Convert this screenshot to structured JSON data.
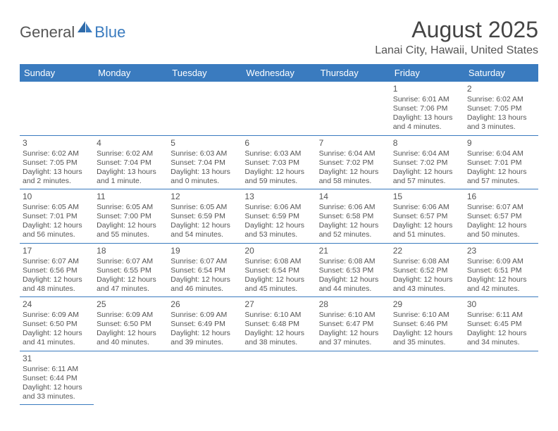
{
  "logo": {
    "general": "General",
    "blue": "Blue"
  },
  "title": "August 2025",
  "location": "Lanai City, Hawaii, United States",
  "colors": {
    "header_bg": "#3a7bbf",
    "header_fg": "#ffffff",
    "border": "#3a7bbf",
    "text": "#555555",
    "logo_gray": "#555555",
    "logo_blue": "#3a7bbf"
  },
  "weekdays": [
    "Sunday",
    "Monday",
    "Tuesday",
    "Wednesday",
    "Thursday",
    "Friday",
    "Saturday"
  ],
  "first_weekday_index": 5,
  "days": [
    {
      "n": 1,
      "sunrise": "6:01 AM",
      "sunset": "7:06 PM",
      "daylight": "13 hours and 4 minutes."
    },
    {
      "n": 2,
      "sunrise": "6:02 AM",
      "sunset": "7:05 PM",
      "daylight": "13 hours and 3 minutes."
    },
    {
      "n": 3,
      "sunrise": "6:02 AM",
      "sunset": "7:05 PM",
      "daylight": "13 hours and 2 minutes."
    },
    {
      "n": 4,
      "sunrise": "6:02 AM",
      "sunset": "7:04 PM",
      "daylight": "13 hours and 1 minute."
    },
    {
      "n": 5,
      "sunrise": "6:03 AM",
      "sunset": "7:04 PM",
      "daylight": "13 hours and 0 minutes."
    },
    {
      "n": 6,
      "sunrise": "6:03 AM",
      "sunset": "7:03 PM",
      "daylight": "12 hours and 59 minutes."
    },
    {
      "n": 7,
      "sunrise": "6:04 AM",
      "sunset": "7:02 PM",
      "daylight": "12 hours and 58 minutes."
    },
    {
      "n": 8,
      "sunrise": "6:04 AM",
      "sunset": "7:02 PM",
      "daylight": "12 hours and 57 minutes."
    },
    {
      "n": 9,
      "sunrise": "6:04 AM",
      "sunset": "7:01 PM",
      "daylight": "12 hours and 57 minutes."
    },
    {
      "n": 10,
      "sunrise": "6:05 AM",
      "sunset": "7:01 PM",
      "daylight": "12 hours and 56 minutes."
    },
    {
      "n": 11,
      "sunrise": "6:05 AM",
      "sunset": "7:00 PM",
      "daylight": "12 hours and 55 minutes."
    },
    {
      "n": 12,
      "sunrise": "6:05 AM",
      "sunset": "6:59 PM",
      "daylight": "12 hours and 54 minutes."
    },
    {
      "n": 13,
      "sunrise": "6:06 AM",
      "sunset": "6:59 PM",
      "daylight": "12 hours and 53 minutes."
    },
    {
      "n": 14,
      "sunrise": "6:06 AM",
      "sunset": "6:58 PM",
      "daylight": "12 hours and 52 minutes."
    },
    {
      "n": 15,
      "sunrise": "6:06 AM",
      "sunset": "6:57 PM",
      "daylight": "12 hours and 51 minutes."
    },
    {
      "n": 16,
      "sunrise": "6:07 AM",
      "sunset": "6:57 PM",
      "daylight": "12 hours and 50 minutes."
    },
    {
      "n": 17,
      "sunrise": "6:07 AM",
      "sunset": "6:56 PM",
      "daylight": "12 hours and 48 minutes."
    },
    {
      "n": 18,
      "sunrise": "6:07 AM",
      "sunset": "6:55 PM",
      "daylight": "12 hours and 47 minutes."
    },
    {
      "n": 19,
      "sunrise": "6:07 AM",
      "sunset": "6:54 PM",
      "daylight": "12 hours and 46 minutes."
    },
    {
      "n": 20,
      "sunrise": "6:08 AM",
      "sunset": "6:54 PM",
      "daylight": "12 hours and 45 minutes."
    },
    {
      "n": 21,
      "sunrise": "6:08 AM",
      "sunset": "6:53 PM",
      "daylight": "12 hours and 44 minutes."
    },
    {
      "n": 22,
      "sunrise": "6:08 AM",
      "sunset": "6:52 PM",
      "daylight": "12 hours and 43 minutes."
    },
    {
      "n": 23,
      "sunrise": "6:09 AM",
      "sunset": "6:51 PM",
      "daylight": "12 hours and 42 minutes."
    },
    {
      "n": 24,
      "sunrise": "6:09 AM",
      "sunset": "6:50 PM",
      "daylight": "12 hours and 41 minutes."
    },
    {
      "n": 25,
      "sunrise": "6:09 AM",
      "sunset": "6:50 PM",
      "daylight": "12 hours and 40 minutes."
    },
    {
      "n": 26,
      "sunrise": "6:09 AM",
      "sunset": "6:49 PM",
      "daylight": "12 hours and 39 minutes."
    },
    {
      "n": 27,
      "sunrise": "6:10 AM",
      "sunset": "6:48 PM",
      "daylight": "12 hours and 38 minutes."
    },
    {
      "n": 28,
      "sunrise": "6:10 AM",
      "sunset": "6:47 PM",
      "daylight": "12 hours and 37 minutes."
    },
    {
      "n": 29,
      "sunrise": "6:10 AM",
      "sunset": "6:46 PM",
      "daylight": "12 hours and 35 minutes."
    },
    {
      "n": 30,
      "sunrise": "6:11 AM",
      "sunset": "6:45 PM",
      "daylight": "12 hours and 34 minutes."
    },
    {
      "n": 31,
      "sunrise": "6:11 AM",
      "sunset": "6:44 PM",
      "daylight": "12 hours and 33 minutes."
    }
  ],
  "labels": {
    "sunrise": "Sunrise:",
    "sunset": "Sunset:",
    "daylight": "Daylight:"
  }
}
